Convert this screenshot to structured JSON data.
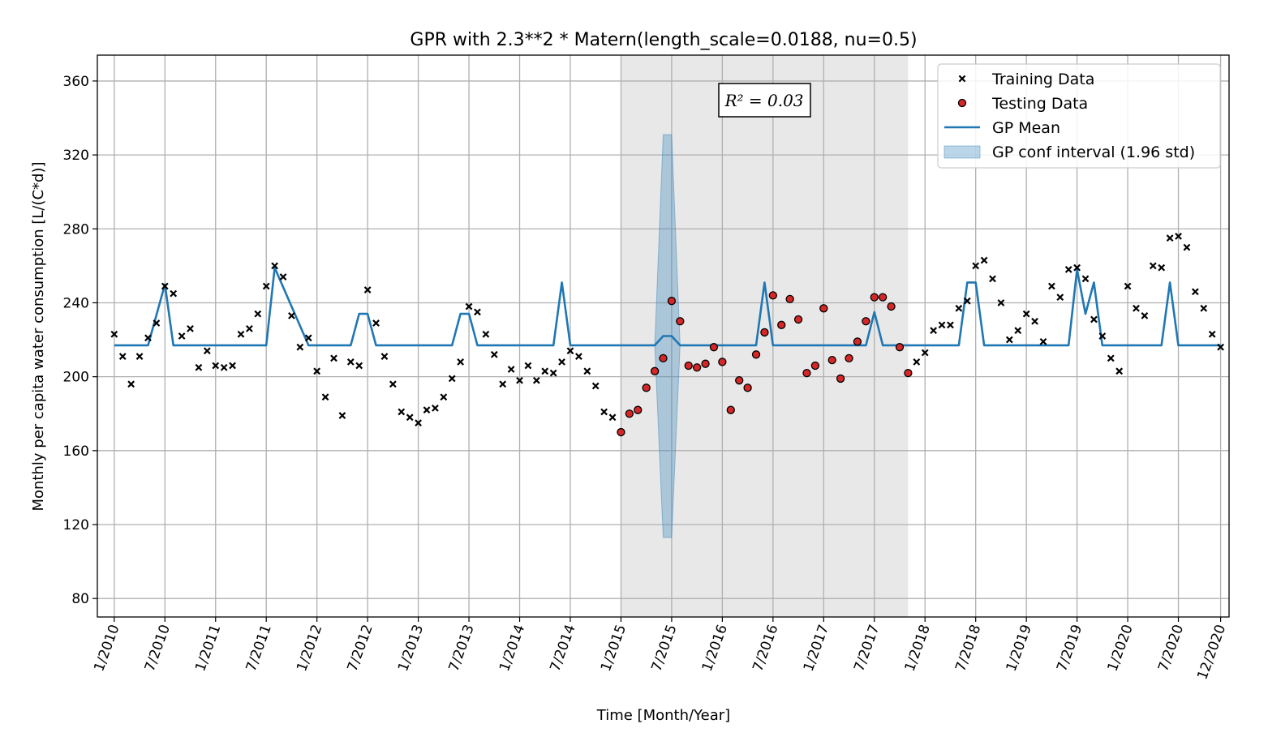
{
  "chart_data": {
    "type": "scatter",
    "title": "GPR with 2.3**2 * Matern(length_scale=0.0188, nu=0.5)",
    "xlabel": "Time [Month/Year]",
    "ylabel": "Monthly per capita water consumption [L/(C*d)]",
    "xlim": [
      "2009-11",
      "2020-13"
    ],
    "ylim": [
      70,
      374
    ],
    "yticks": [
      80,
      120,
      160,
      200,
      240,
      280,
      320,
      360
    ],
    "xtick_labels": [
      "1/2010",
      "7/2010",
      "1/2011",
      "7/2011",
      "1/2012",
      "7/2012",
      "1/2013",
      "7/2013",
      "1/2014",
      "7/2014",
      "1/2015",
      "7/2015",
      "1/2016",
      "7/2016",
      "1/2017",
      "7/2017",
      "1/2018",
      "7/2018",
      "1/2019",
      "7/2019",
      "1/2020",
      "7/2020",
      "12/2020"
    ],
    "grid": true,
    "legend_position": "top-right",
    "annotation": "R² = 0.03",
    "test_region": {
      "start": "1/2015",
      "end": "11/2017"
    },
    "colors": {
      "training": "#000000",
      "testing": "#d62728",
      "mean": "#1f77b4",
      "ci": "#1f77b4",
      "test_region": "#e5e5e5"
    },
    "series": [
      {
        "name": "Training Data",
        "kind": "scatter-x",
        "x": [
          "2010-01",
          "2010-02",
          "2010-03",
          "2010-04",
          "2010-05",
          "2010-06",
          "2010-07",
          "2010-08",
          "2010-09",
          "2010-10",
          "2010-11",
          "2010-12",
          "2011-01",
          "2011-02",
          "2011-03",
          "2011-04",
          "2011-05",
          "2011-06",
          "2011-07",
          "2011-08",
          "2011-09",
          "2011-10",
          "2011-11",
          "2011-12",
          "2012-01",
          "2012-02",
          "2012-03",
          "2012-04",
          "2012-05",
          "2012-06",
          "2012-07",
          "2012-08",
          "2012-09",
          "2012-10",
          "2012-11",
          "2012-12",
          "2013-01",
          "2013-02",
          "2013-03",
          "2013-04",
          "2013-05",
          "2013-06",
          "2013-07",
          "2013-08",
          "2013-09",
          "2013-10",
          "2013-11",
          "2013-12",
          "2014-01",
          "2014-02",
          "2014-03",
          "2014-04",
          "2014-05",
          "2014-06",
          "2014-07",
          "2014-08",
          "2014-09",
          "2014-10",
          "2014-11",
          "2014-12",
          "2017-12",
          "2018-01",
          "2018-02",
          "2018-03",
          "2018-04",
          "2018-05",
          "2018-06",
          "2018-07",
          "2018-08",
          "2018-09",
          "2018-10",
          "2018-11",
          "2018-12",
          "2019-01",
          "2019-02",
          "2019-03",
          "2019-04",
          "2019-05",
          "2019-06",
          "2019-07",
          "2019-08",
          "2019-09",
          "2019-10",
          "2019-11",
          "2019-12",
          "2020-01",
          "2020-02",
          "2020-03",
          "2020-04",
          "2020-05",
          "2020-06",
          "2020-07",
          "2020-08",
          "2020-09",
          "2020-10",
          "2020-11",
          "2020-12"
        ],
        "y": [
          223,
          211,
          196,
          211,
          221,
          229,
          249,
          245,
          222,
          226,
          205,
          214,
          206,
          205,
          206,
          223,
          226,
          234,
          249,
          260,
          254,
          233,
          216,
          221,
          203,
          189,
          210,
          179,
          208,
          206,
          247,
          229,
          211,
          196,
          181,
          178,
          175,
          182,
          183,
          189,
          199,
          208,
          238,
          235,
          223,
          212,
          196,
          204,
          198,
          206,
          198,
          203,
          202,
          208,
          214,
          211,
          203,
          195,
          181,
          178,
          208,
          213,
          225,
          228,
          228,
          237,
          241,
          260,
          263,
          253,
          240,
          220,
          225,
          234,
          230,
          219,
          249,
          243,
          258,
          259,
          253,
          231,
          222,
          210,
          203,
          249,
          237,
          233,
          260,
          259,
          275,
          276,
          270,
          246,
          237,
          223,
          216
        ]
      },
      {
        "name": "Testing Data",
        "kind": "scatter-dot",
        "x": [
          "2015-01",
          "2015-02",
          "2015-03",
          "2015-04",
          "2015-05",
          "2015-06",
          "2015-07",
          "2015-08",
          "2015-09",
          "2015-10",
          "2015-11",
          "2015-12",
          "2016-01",
          "2016-02",
          "2016-03",
          "2016-04",
          "2016-05",
          "2016-06",
          "2016-07",
          "2016-08",
          "2016-09",
          "2016-10",
          "2016-11",
          "2016-12",
          "2017-01",
          "2017-02",
          "2017-03",
          "2017-04",
          "2017-05",
          "2017-06",
          "2017-07",
          "2017-08",
          "2017-09",
          "2017-10",
          "2017-11"
        ],
        "y": [
          170,
          180,
          182,
          194,
          203,
          210,
          241,
          230,
          206,
          205,
          207,
          216,
          208,
          182,
          198,
          194,
          212,
          224,
          244,
          228,
          242,
          231,
          202,
          206,
          237,
          209,
          199,
          210,
          219,
          230,
          243,
          243,
          238,
          216,
          202
        ]
      },
      {
        "name": "GP Mean",
        "kind": "line",
        "x": [
          "2010-01",
          "2010-05",
          "2010-07",
          "2010-08",
          "2011-07",
          "2011-08",
          "2011-12",
          "2012-05",
          "2012-06",
          "2012-07",
          "2012-08",
          "2012-12",
          "2013-05",
          "2013-06",
          "2013-07",
          "2013-08",
          "2013-12",
          "2014-05",
          "2014-06",
          "2014-07",
          "2014-12",
          "2015-05",
          "2015-06",
          "2015-07",
          "2015-08",
          "2015-09",
          "2015-10",
          "2016-04",
          "2016-05",
          "2016-06",
          "2016-07",
          "2016-08",
          "2017-05",
          "2017-06",
          "2017-07",
          "2017-08",
          "2017-12",
          "2018-05",
          "2018-06",
          "2018-07",
          "2018-08",
          "2018-12",
          "2019-05",
          "2019-06",
          "2019-07",
          "2019-08",
          "2019-09",
          "2019-10",
          "2020-04",
          "2020-05",
          "2020-06",
          "2020-07",
          "2020-12"
        ],
        "y": [
          217,
          217,
          250,
          217,
          217,
          259,
          217,
          217,
          234,
          234,
          217,
          217,
          217,
          234,
          234,
          217,
          217,
          217,
          251,
          217,
          217,
          217,
          222,
          222,
          217,
          217,
          217,
          217,
          217,
          251,
          217,
          217,
          217,
          217,
          235,
          217,
          217,
          217,
          251,
          251,
          217,
          217,
          217,
          217,
          258,
          234,
          251,
          217,
          217,
          217,
          251,
          217,
          217
        ]
      },
      {
        "name": "GP conf interval (1.96 std)",
        "kind": "band",
        "x": [
          "2015-05",
          "2015-06",
          "2015-07",
          "2015-08",
          "2015-09"
        ],
        "lower": [
          217,
          113,
          113,
          217,
          217
        ],
        "upper": [
          217,
          331,
          331,
          217,
          217
        ]
      }
    ]
  }
}
